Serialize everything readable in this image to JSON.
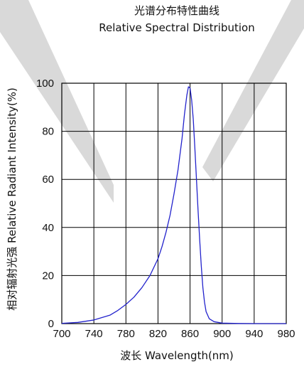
{
  "chart_data": {
    "type": "line",
    "title": "光谱分布特性曲线",
    "subtitle": "Relative Spectral Distribution",
    "xlabel": "波长 Wavelength(nm)",
    "ylabel": "相对辐射光强 Relative Radiant Intensity(%)",
    "xlim": [
      700,
      980
    ],
    "ylim": [
      0,
      100
    ],
    "x_ticks": [
      "700",
      "740",
      "780",
      "820",
      "860",
      "900",
      "940",
      "980"
    ],
    "y_ticks": [
      "0",
      "20",
      "40",
      "60",
      "80",
      "100"
    ],
    "grid": true,
    "legend": "none",
    "colors": {
      "line": "#2222cc",
      "grid": "#000000",
      "watermark": "#d9d9d9"
    },
    "series": [
      {
        "x": [
          700,
          720,
          740,
          760,
          770,
          780,
          790,
          800,
          810,
          820,
          825,
          830,
          835,
          840,
          845,
          850,
          853,
          856,
          858,
          860,
          862,
          864,
          866,
          868,
          870,
          872,
          874,
          876,
          878,
          880,
          884,
          890,
          900,
          920,
          940,
          980
        ],
        "values": [
          0.1,
          0.5,
          1.5,
          3.5,
          5.5,
          8,
          11,
          15,
          20,
          27,
          32,
          38,
          45,
          54,
          64,
          77,
          87,
          95,
          98.5,
          98,
          93,
          85,
          73,
          60,
          47,
          35,
          24,
          15,
          9,
          5,
          2,
          0.8,
          0.2,
          0.05,
          0,
          0
        ]
      }
    ]
  }
}
